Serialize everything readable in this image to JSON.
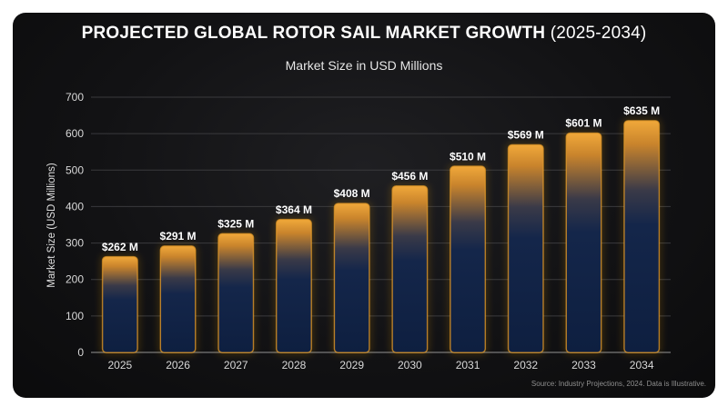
{
  "title": {
    "main": "PROJECTED GLOBAL ROTOR SAIL MARKET GROWTH",
    "range": "(2025-2034)"
  },
  "subtitle": "Market Size in USD Millions",
  "source": "Source: Industry Projections, 2024. Data is Illustrative.",
  "colors": {
    "background": "#121214",
    "bar_fill": "#0f2244",
    "bar_glow": "#f5a623",
    "grid": "#3a3a3d"
  },
  "chart_data": {
    "type": "bar",
    "title": "PROJECTED GLOBAL ROTOR SAIL MARKET GROWTH (2025-2034)",
    "subtitle": "Market Size in USD Millions",
    "xlabel": "",
    "ylabel": "Market Size (USD Millions)",
    "ylim": [
      0,
      700
    ],
    "yticks": [
      0,
      100,
      200,
      300,
      400,
      500,
      600,
      700
    ],
    "grid": true,
    "categories": [
      "2025",
      "2026",
      "2027",
      "2028",
      "2029",
      "2030",
      "2031",
      "2032",
      "2033",
      "2034"
    ],
    "values": [
      262,
      291,
      325,
      364,
      408,
      456,
      510,
      569,
      601,
      635
    ],
    "data_labels": [
      "$262 M",
      "$291 M",
      "$325 M",
      "$364 M",
      "$408 M",
      "$456 M",
      "$510 M",
      "$569 M",
      "$601 M",
      "$635 M"
    ]
  }
}
